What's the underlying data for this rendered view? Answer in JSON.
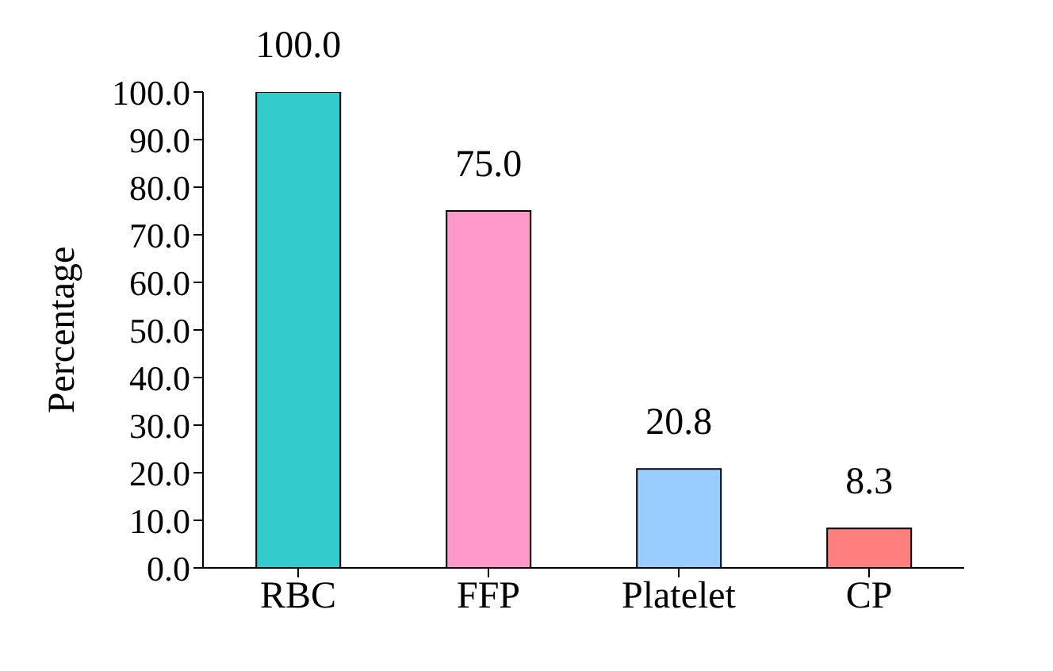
{
  "chart_data": {
    "type": "bar",
    "ylabel": "Percentage",
    "categories": [
      "RBC",
      "FFP",
      "Platelet",
      "CP"
    ],
    "values": [
      100.0,
      75.0,
      20.8,
      8.3
    ],
    "colors": [
      "#33cccc",
      "#ff99cc",
      "#99ccff",
      "#ff7f7f"
    ],
    "value_labels": [
      "100.0",
      "75.0",
      "20.8",
      "8.3"
    ],
    "ylim": [
      0,
      100
    ],
    "yticks": [
      {
        "value": 0,
        "label": "0.0"
      },
      {
        "value": 10,
        "label": "10.0"
      },
      {
        "value": 20,
        "label": "20.0"
      },
      {
        "value": 30,
        "label": "30.0"
      },
      {
        "value": 40,
        "label": "40.0"
      },
      {
        "value": 50,
        "label": "50.0"
      },
      {
        "value": 60,
        "label": "60.0"
      },
      {
        "value": 70,
        "label": "70.0"
      },
      {
        "value": 80,
        "label": "80.0"
      },
      {
        "value": 90,
        "label": "90.0"
      },
      {
        "value": 100,
        "label": "100.0"
      }
    ],
    "grid": false,
    "legend": false
  }
}
